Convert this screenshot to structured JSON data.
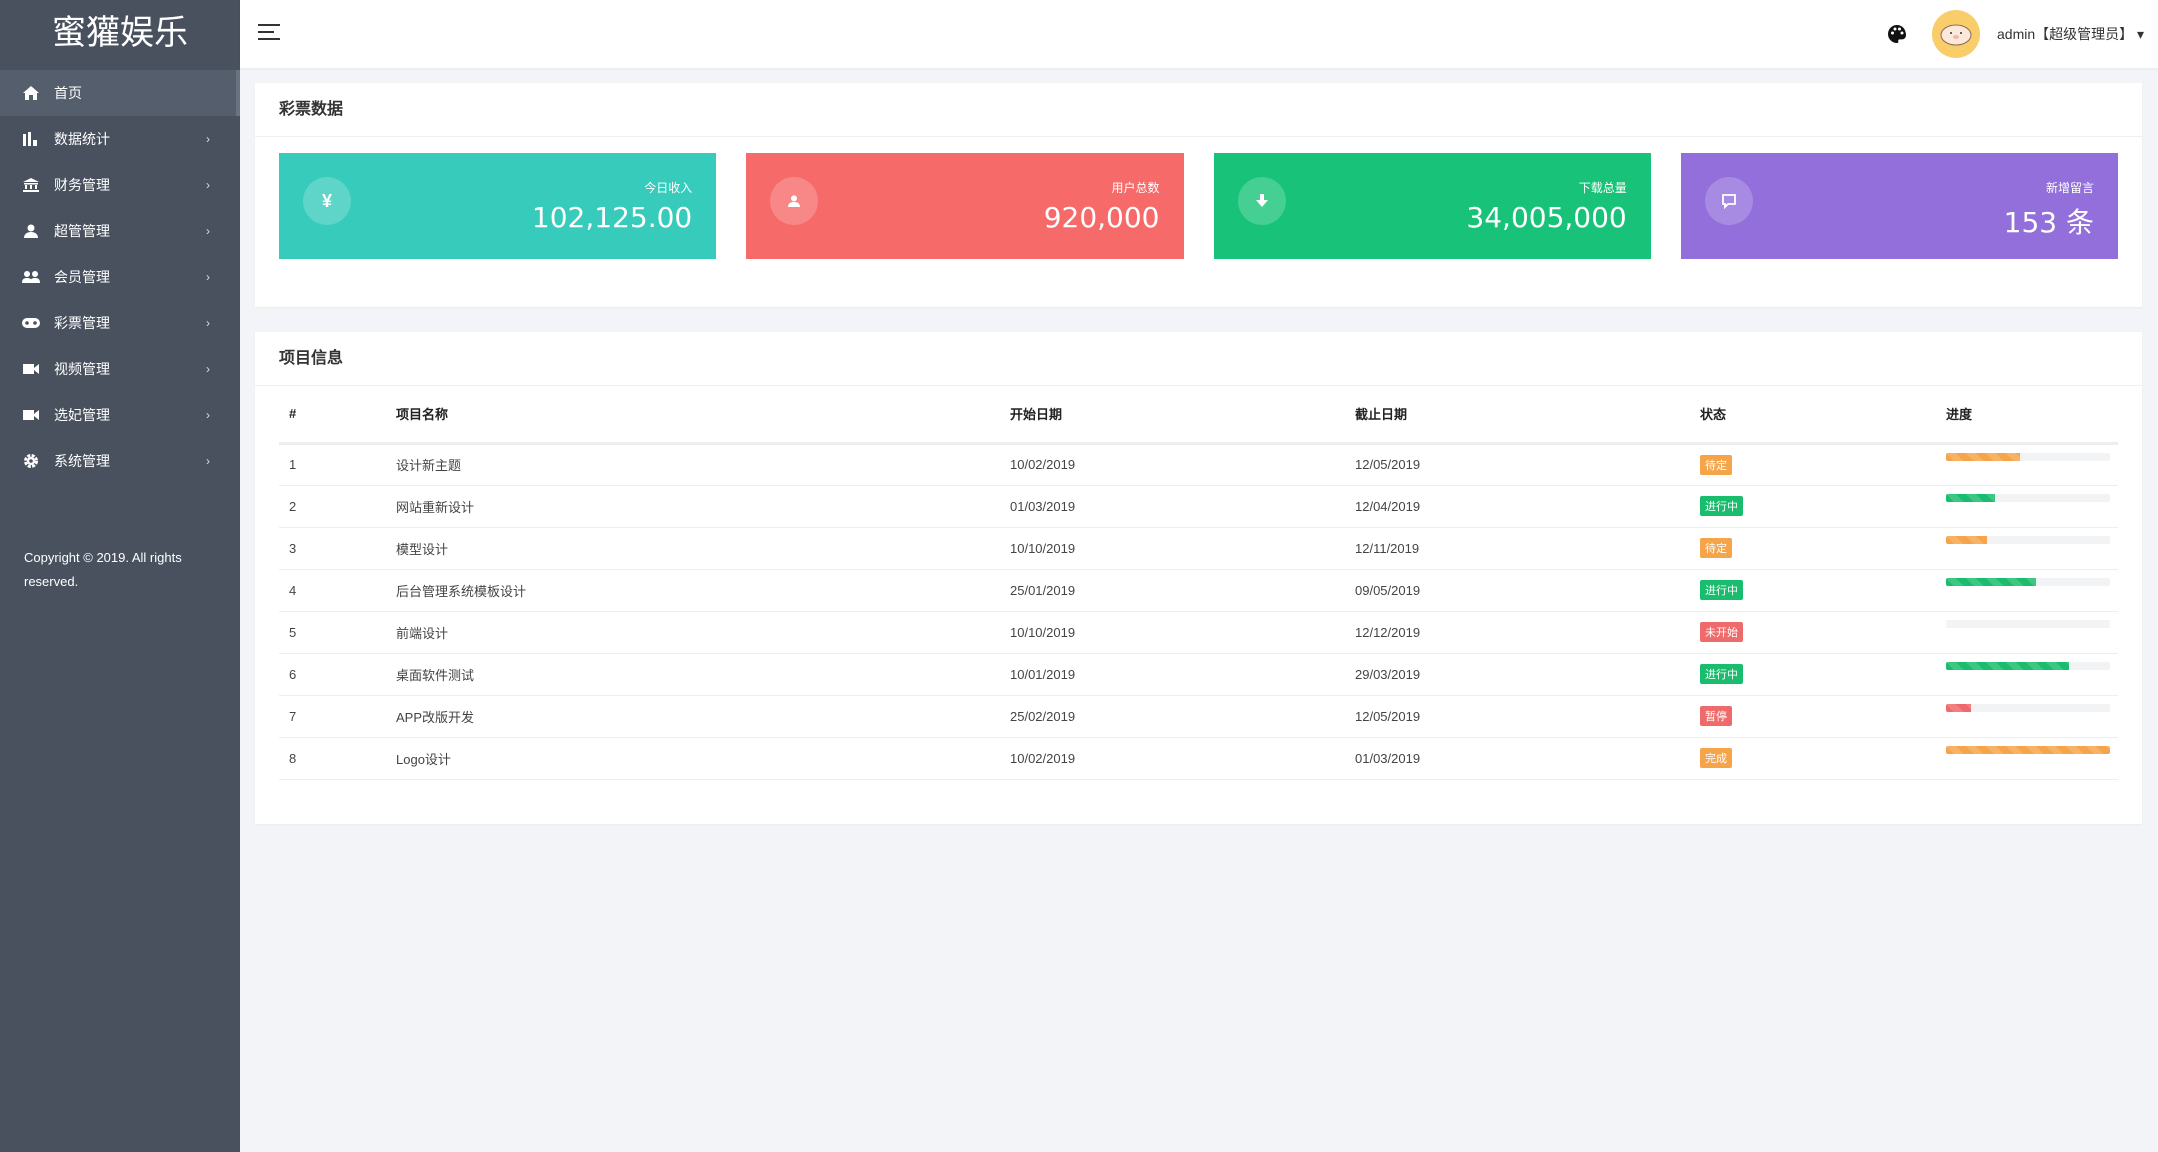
{
  "brand": "蜜獾娱乐",
  "sidebar": {
    "items": [
      {
        "label": "首页",
        "icon": "home-icon",
        "active": true
      },
      {
        "label": "数据统计",
        "icon": "bar-chart-icon"
      },
      {
        "label": "财务管理",
        "icon": "bank-icon"
      },
      {
        "label": "超管管理",
        "icon": "user-icon"
      },
      {
        "label": "会员管理",
        "icon": "users-icon"
      },
      {
        "label": "彩票管理",
        "icon": "gamepad-icon"
      },
      {
        "label": "视频管理",
        "icon": "video-icon"
      },
      {
        "label": "选妃管理",
        "icon": "video-icon"
      },
      {
        "label": "系统管理",
        "icon": "gear-icon"
      }
    ],
    "copyright": "Copyright © 2019. All rights reserved."
  },
  "header": {
    "user": "admin【超级管理员】"
  },
  "stats": {
    "title": "彩票数据",
    "cards": [
      {
        "label": "今日收入",
        "value": "102,125.00",
        "icon": "yen-icon",
        "color": "#36cbbb"
      },
      {
        "label": "用户总数",
        "value": "920,000",
        "icon": "user-icon",
        "color": "#f76a6a"
      },
      {
        "label": "下载总量",
        "value": "34,005,000",
        "icon": "download-icon",
        "color": "#18c379"
      },
      {
        "label": "新增留言",
        "value": "153 条",
        "icon": "comment-icon",
        "color": "#926fdb"
      }
    ]
  },
  "projects": {
    "title": "项目信息",
    "columns": [
      "#",
      "项目名称",
      "开始日期",
      "截止日期",
      "状态",
      "进度"
    ],
    "rows": [
      {
        "id": "1",
        "name": "设计新主题",
        "start": "10/02/2019",
        "end": "12/05/2019",
        "status": "待定",
        "status_color": "#f5a44a",
        "progress": 45
      },
      {
        "id": "2",
        "name": "网站重新设计",
        "start": "01/03/2019",
        "end": "12/04/2019",
        "status": "进行中",
        "status_color": "#1abd6d",
        "progress": 30
      },
      {
        "id": "3",
        "name": "模型设计",
        "start": "10/10/2019",
        "end": "12/11/2019",
        "status": "待定",
        "status_color": "#f5a44a",
        "progress": 25
      },
      {
        "id": "4",
        "name": "后台管理系统模板设计",
        "start": "25/01/2019",
        "end": "09/05/2019",
        "status": "进行中",
        "status_color": "#1abd6d",
        "progress": 55
      },
      {
        "id": "5",
        "name": "前端设计",
        "start": "10/10/2019",
        "end": "12/12/2019",
        "status": "未开始",
        "status_color": "#ef6b6b",
        "progress": 0
      },
      {
        "id": "6",
        "name": "桌面软件测试",
        "start": "10/01/2019",
        "end": "29/03/2019",
        "status": "进行中",
        "status_color": "#1abd6d",
        "progress": 75
      },
      {
        "id": "7",
        "name": "APP改版开发",
        "start": "25/02/2019",
        "end": "12/05/2019",
        "status": "暂停",
        "status_color": "#ef6b6b",
        "progress": 15
      },
      {
        "id": "8",
        "name": "Logo设计",
        "start": "10/02/2019",
        "end": "01/03/2019",
        "status": "完成",
        "status_color": "#f5a44a",
        "progress": 100
      }
    ]
  }
}
